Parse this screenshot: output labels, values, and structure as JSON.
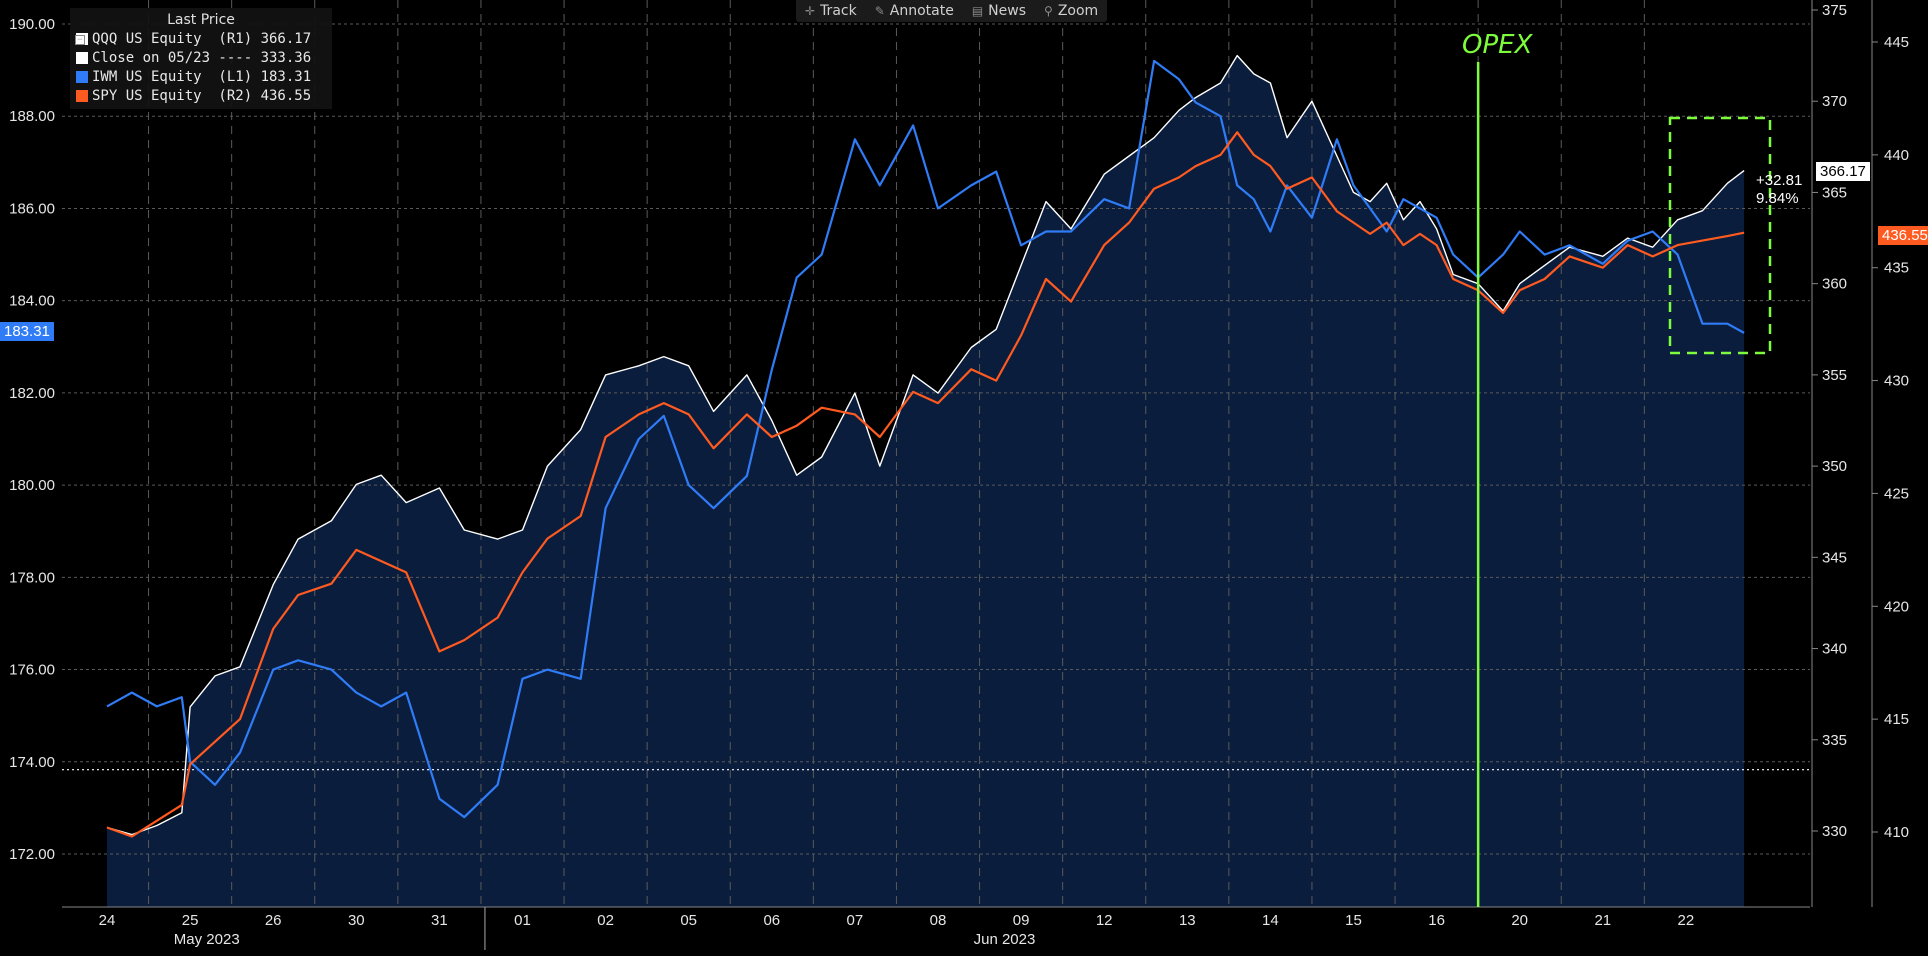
{
  "toolbar": {
    "items": [
      {
        "label": "Track",
        "icon": "crosshair-icon"
      },
      {
        "label": "Annotate",
        "icon": "pencil-icon"
      },
      {
        "label": "News",
        "icon": "news-icon"
      },
      {
        "label": "Zoom",
        "icon": "magnifier-icon"
      }
    ]
  },
  "legend": {
    "title": "Last Price",
    "entries": [
      {
        "label": "QQQ US Equity  (R1) 366.17",
        "color": "#ffffff"
      },
      {
        "label": "Close on 05/23 ---- 333.36",
        "color": "#ffffff"
      },
      {
        "label": "IWM US Equity  (L1) 183.31",
        "color": "#2f7cf6"
      },
      {
        "label": "SPY US Equity  (R2) 436.55",
        "color": "#ff5a1f"
      }
    ]
  },
  "tags": {
    "iwm": "183.31",
    "qqq": "366.17",
    "spy": "436.55",
    "change_abs": "+32.81",
    "change_pct": "9.84%"
  },
  "annotation": {
    "opex_label": "OPEX",
    "opex_color": "#7cfc3a"
  },
  "chart_data": {
    "type": "line",
    "x_days": [
      "24",
      "25",
      "26",
      "30",
      "31",
      "01",
      "02",
      "05",
      "06",
      "07",
      "08",
      "09",
      "12",
      "13",
      "14",
      "15",
      "16",
      "20",
      "21",
      "22"
    ],
    "months": [
      {
        "label": "May 2023",
        "start_index": 0
      },
      {
        "label": "Jun 2023",
        "start_index": 5
      }
    ],
    "axes": {
      "left": {
        "series": "IWM",
        "ticks": [
          "172.00",
          "174.00",
          "176.00",
          "178.00",
          "180.00",
          "182.00",
          "184.00",
          "186.00",
          "188.00",
          "190.00"
        ],
        "range": [
          171.0,
          190.5
        ]
      },
      "r1": {
        "series": "QQQ",
        "ticks": [
          "330",
          "335",
          "340",
          "345",
          "350",
          "355",
          "360",
          "365",
          "370",
          "375"
        ],
        "range": [
          326.0,
          375.2
        ]
      },
      "r2": {
        "series": "SPY",
        "ticks": [
          "410",
          "415",
          "420",
          "425",
          "430",
          "435",
          "440",
          "445"
        ],
        "range": [
          406.5,
          447.5
        ]
      }
    },
    "reference_line": {
      "label": "Close on 05/23",
      "axis": "r1",
      "value": 333.36
    },
    "series": [
      {
        "name": "QQQ US Equity",
        "axis": "r1",
        "color": "#ffffff",
        "points": [
          [
            0,
            330.2
          ],
          [
            0.3,
            329.8
          ],
          [
            0.6,
            330.3
          ],
          [
            0.9,
            331.0
          ],
          [
            1.0,
            336.8
          ],
          [
            1.3,
            338.5
          ],
          [
            1.6,
            339.0
          ],
          [
            2.0,
            343.5
          ],
          [
            2.3,
            346.0
          ],
          [
            2.7,
            347.0
          ],
          [
            3.0,
            349.0
          ],
          [
            3.3,
            349.5
          ],
          [
            3.6,
            348.0
          ],
          [
            4.0,
            348.8
          ],
          [
            4.3,
            346.5
          ],
          [
            4.7,
            346.0
          ],
          [
            5.0,
            346.5
          ],
          [
            5.3,
            350.0
          ],
          [
            5.7,
            352.0
          ],
          [
            6.0,
            355.0
          ],
          [
            6.4,
            355.5
          ],
          [
            6.7,
            356.0
          ],
          [
            7.0,
            355.5
          ],
          [
            7.3,
            353.0
          ],
          [
            7.7,
            355.0
          ],
          [
            8.0,
            352.5
          ],
          [
            8.3,
            349.5
          ],
          [
            8.6,
            350.5
          ],
          [
            9.0,
            354.0
          ],
          [
            9.3,
            350.0
          ],
          [
            9.7,
            355.0
          ],
          [
            10.0,
            354.0
          ],
          [
            10.4,
            356.5
          ],
          [
            10.7,
            357.5
          ],
          [
            11.0,
            361.0
          ],
          [
            11.3,
            364.5
          ],
          [
            11.6,
            363.0
          ],
          [
            12.0,
            366.0
          ],
          [
            12.3,
            367.0
          ],
          [
            12.6,
            368.0
          ],
          [
            12.9,
            369.5
          ],
          [
            13.1,
            370.2
          ],
          [
            13.4,
            371.0
          ],
          [
            13.6,
            372.5
          ],
          [
            13.8,
            371.5
          ],
          [
            14.0,
            371.0
          ],
          [
            14.2,
            368.0
          ],
          [
            14.5,
            370.0
          ],
          [
            14.8,
            367.0
          ],
          [
            15.0,
            365.0
          ],
          [
            15.2,
            364.5
          ],
          [
            15.4,
            365.5
          ],
          [
            15.6,
            363.5
          ],
          [
            15.8,
            364.5
          ],
          [
            16.0,
            363.0
          ],
          [
            16.2,
            360.5
          ],
          [
            16.5,
            360.0
          ],
          [
            16.8,
            358.5
          ],
          [
            17.0,
            360.0
          ],
          [
            17.3,
            361.0
          ],
          [
            17.6,
            362.0
          ],
          [
            18.0,
            361.5
          ],
          [
            18.3,
            362.5
          ],
          [
            18.6,
            362.0
          ],
          [
            18.9,
            363.5
          ],
          [
            19.2,
            364.0
          ],
          [
            19.5,
            365.5
          ],
          [
            19.7,
            366.2
          ]
        ]
      },
      {
        "name": "IWM US Equity",
        "axis": "left",
        "color": "#2f7cf6",
        "points": [
          [
            0,
            175.2
          ],
          [
            0.3,
            175.5
          ],
          [
            0.6,
            175.2
          ],
          [
            0.9,
            175.4
          ],
          [
            1.0,
            174.0
          ],
          [
            1.3,
            173.5
          ],
          [
            1.6,
            174.2
          ],
          [
            2.0,
            176.0
          ],
          [
            2.3,
            176.2
          ],
          [
            2.7,
            176.0
          ],
          [
            3.0,
            175.5
          ],
          [
            3.3,
            175.2
          ],
          [
            3.6,
            175.5
          ],
          [
            4.0,
            173.2
          ],
          [
            4.3,
            172.8
          ],
          [
            4.7,
            173.5
          ],
          [
            5.0,
            175.8
          ],
          [
            5.3,
            176.0
          ],
          [
            5.7,
            175.8
          ],
          [
            6.0,
            179.5
          ],
          [
            6.4,
            181.0
          ],
          [
            6.7,
            181.5
          ],
          [
            7.0,
            180.0
          ],
          [
            7.3,
            179.5
          ],
          [
            7.7,
            180.2
          ],
          [
            8.0,
            182.5
          ],
          [
            8.3,
            184.5
          ],
          [
            8.6,
            185.0
          ],
          [
            9.0,
            187.5
          ],
          [
            9.3,
            186.5
          ],
          [
            9.7,
            187.8
          ],
          [
            10.0,
            186.0
          ],
          [
            10.4,
            186.5
          ],
          [
            10.7,
            186.8
          ],
          [
            11.0,
            185.2
          ],
          [
            11.3,
            185.5
          ],
          [
            11.6,
            185.5
          ],
          [
            12.0,
            186.2
          ],
          [
            12.3,
            186.0
          ],
          [
            12.6,
            189.2
          ],
          [
            12.9,
            188.8
          ],
          [
            13.1,
            188.3
          ],
          [
            13.4,
            188.0
          ],
          [
            13.6,
            186.5
          ],
          [
            13.8,
            186.2
          ],
          [
            14.0,
            185.5
          ],
          [
            14.2,
            186.5
          ],
          [
            14.5,
            185.8
          ],
          [
            14.8,
            187.5
          ],
          [
            15.0,
            186.5
          ],
          [
            15.2,
            186.0
          ],
          [
            15.4,
            185.5
          ],
          [
            15.6,
            186.2
          ],
          [
            15.8,
            186.0
          ],
          [
            16.0,
            185.8
          ],
          [
            16.2,
            185.0
          ],
          [
            16.5,
            184.5
          ],
          [
            16.8,
            185.0
          ],
          [
            17.0,
            185.5
          ],
          [
            17.3,
            185.0
          ],
          [
            17.6,
            185.2
          ],
          [
            18.0,
            184.8
          ],
          [
            18.3,
            185.3
          ],
          [
            18.6,
            185.5
          ],
          [
            18.9,
            185.0
          ],
          [
            19.2,
            183.5
          ],
          [
            19.5,
            183.5
          ],
          [
            19.7,
            183.3
          ]
        ]
      },
      {
        "name": "SPY US Equity",
        "axis": "r2",
        "color": "#ff5a1f",
        "points": [
          [
            0,
            410.2
          ],
          [
            0.3,
            409.8
          ],
          [
            0.6,
            410.5
          ],
          [
            0.9,
            411.2
          ],
          [
            1.0,
            413.0
          ],
          [
            1.3,
            414.0
          ],
          [
            1.6,
            415.0
          ],
          [
            2.0,
            419.0
          ],
          [
            2.3,
            420.5
          ],
          [
            2.7,
            421.0
          ],
          [
            3.0,
            422.5
          ],
          [
            3.3,
            422.0
          ],
          [
            3.6,
            421.5
          ],
          [
            4.0,
            418.0
          ],
          [
            4.3,
            418.5
          ],
          [
            4.7,
            419.5
          ],
          [
            5.0,
            421.5
          ],
          [
            5.3,
            423.0
          ],
          [
            5.7,
            424.0
          ],
          [
            6.0,
            427.5
          ],
          [
            6.4,
            428.5
          ],
          [
            6.7,
            429.0
          ],
          [
            7.0,
            428.5
          ],
          [
            7.3,
            427.0
          ],
          [
            7.7,
            428.5
          ],
          [
            8.0,
            427.5
          ],
          [
            8.3,
            428.0
          ],
          [
            8.6,
            428.8
          ],
          [
            9.0,
            428.5
          ],
          [
            9.3,
            427.5
          ],
          [
            9.7,
            429.5
          ],
          [
            10.0,
            429.0
          ],
          [
            10.4,
            430.5
          ],
          [
            10.7,
            430.0
          ],
          [
            11.0,
            432.0
          ],
          [
            11.3,
            434.5
          ],
          [
            11.6,
            433.5
          ],
          [
            12.0,
            436.0
          ],
          [
            12.3,
            437.0
          ],
          [
            12.6,
            438.5
          ],
          [
            12.9,
            439.0
          ],
          [
            13.1,
            439.5
          ],
          [
            13.4,
            440.0
          ],
          [
            13.6,
            441.0
          ],
          [
            13.8,
            440.0
          ],
          [
            14.0,
            439.5
          ],
          [
            14.2,
            438.5
          ],
          [
            14.5,
            439.0
          ],
          [
            14.8,
            437.5
          ],
          [
            15.0,
            437.0
          ],
          [
            15.2,
            436.5
          ],
          [
            15.4,
            437.0
          ],
          [
            15.6,
            436.0
          ],
          [
            15.8,
            436.5
          ],
          [
            16.0,
            436.0
          ],
          [
            16.2,
            434.5
          ],
          [
            16.5,
            434.0
          ],
          [
            16.8,
            433.0
          ],
          [
            17.0,
            434.0
          ],
          [
            17.3,
            434.5
          ],
          [
            17.6,
            435.5
          ],
          [
            18.0,
            435.0
          ],
          [
            18.3,
            436.0
          ],
          [
            18.6,
            435.5
          ],
          [
            18.9,
            436.0
          ],
          [
            19.2,
            436.2
          ],
          [
            19.5,
            436.4
          ],
          [
            19.7,
            436.55
          ]
        ]
      }
    ]
  }
}
